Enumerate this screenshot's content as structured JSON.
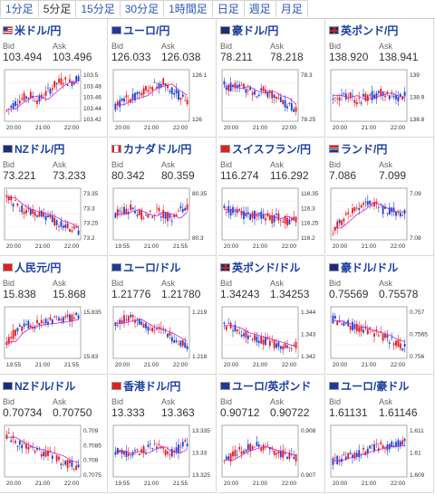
{
  "tabs": [
    {
      "label": "1分足",
      "active": false
    },
    {
      "label": "5分足",
      "active": true
    },
    {
      "label": "15分足",
      "active": false
    },
    {
      "label": "30分足",
      "active": false
    },
    {
      "label": "1時間足",
      "active": false
    },
    {
      "label": "日足",
      "active": false
    },
    {
      "label": "週足",
      "active": false
    },
    {
      "label": "月足",
      "active": false
    }
  ],
  "quote_labels": {
    "bid": "Bid",
    "ask": "Ask"
  },
  "pairs": [
    {
      "name": "米ドル/円",
      "flag": "flag-us-icon",
      "bid": "103.494",
      "ask": "103.496",
      "yticks": [
        "103.5",
        "103.48",
        "103.46",
        "103.44",
        "103.42"
      ],
      "xticks": [
        "20:00",
        "21:00",
        "22:00"
      ],
      "trend": [
        0.2,
        0.35,
        0.45,
        0.5,
        0.4,
        0.55,
        0.7,
        0.8,
        0.75,
        0.85
      ]
    },
    {
      "name": "ユーロ/円",
      "flag": "flag-eu-icon",
      "bid": "126.033",
      "ask": "126.038",
      "yticks": [
        "126.1",
        "126"
      ],
      "xticks": [
        "20:00",
        "21:00",
        "22:00"
      ],
      "trend": [
        0.3,
        0.4,
        0.45,
        0.5,
        0.65,
        0.7,
        0.75,
        0.6,
        0.5,
        0.35
      ]
    },
    {
      "name": "豪ドル/円",
      "flag": "flag-au-icon",
      "bid": "78.211",
      "ask": "78.218",
      "yticks": [
        "78.3",
        "78.25"
      ],
      "xticks": [
        "20:00",
        "21:00",
        "22:00"
      ],
      "trend": [
        0.7,
        0.65,
        0.7,
        0.6,
        0.55,
        0.6,
        0.5,
        0.45,
        0.3,
        0.25
      ]
    },
    {
      "name": "英ポンド/円",
      "flag": "flag-uk-icon",
      "bid": "138.920",
      "ask": "138.941",
      "yticks": [
        "139",
        "138.9",
        "138.8"
      ],
      "xticks": [
        "20:00",
        "21:00",
        "22:00"
      ],
      "trend": [
        0.5,
        0.45,
        0.5,
        0.4,
        0.45,
        0.5,
        0.55,
        0.5,
        0.45,
        0.5
      ]
    },
    {
      "name": "NZドル/円",
      "flag": "flag-nz-icon",
      "bid": "73.221",
      "ask": "73.233",
      "yticks": [
        "73.35",
        "73.3",
        "73.25",
        "73.2"
      ],
      "xticks": [
        "20:00",
        "21:00",
        "22:00"
      ],
      "trend": [
        0.85,
        0.7,
        0.6,
        0.55,
        0.5,
        0.45,
        0.35,
        0.3,
        0.2,
        0.15
      ]
    },
    {
      "name": "カナダドル/円",
      "flag": "flag-ca-icon",
      "bid": "80.342",
      "ask": "80.359",
      "yticks": [
        "80.35",
        "80.3"
      ],
      "xticks": [
        "19:55",
        "21:00",
        "21:55"
      ],
      "trend": [
        0.5,
        0.55,
        0.6,
        0.5,
        0.45,
        0.55,
        0.5,
        0.4,
        0.55,
        0.6
      ]
    },
    {
      "name": "スイスフラン/円",
      "flag": "flag-ch-icon",
      "bid": "116.274",
      "ask": "116.292",
      "yticks": [
        "116.35",
        "116.3",
        "116.25",
        "116.2"
      ],
      "xticks": [
        "20:00",
        "21:00",
        "22:00"
      ],
      "trend": [
        0.6,
        0.55,
        0.5,
        0.45,
        0.5,
        0.45,
        0.4,
        0.45,
        0.35,
        0.4
      ]
    },
    {
      "name": "ランド/円",
      "flag": "flag-za-icon",
      "bid": "7.086",
      "ask": "7.099",
      "yticks": [
        "7.09",
        "7.08"
      ],
      "xticks": [
        "20:00",
        "21:00",
        "22:00"
      ],
      "trend": [
        0.2,
        0.35,
        0.5,
        0.6,
        0.75,
        0.7,
        0.6,
        0.55,
        0.55,
        0.5
      ]
    },
    {
      "name": "人民元/円",
      "flag": "flag-cn-icon",
      "bid": "15.838",
      "ask": "15.868",
      "yticks": [
        "15.835",
        "15.83"
      ],
      "xticks": [
        "19:55",
        "21:00",
        "21:55"
      ],
      "trend": [
        0.3,
        0.5,
        0.6,
        0.65,
        0.68,
        0.7,
        0.72,
        0.75,
        0.78,
        0.8
      ]
    },
    {
      "name": "ユーロ/ドル",
      "flag": "flag-eu-icon",
      "bid": "1.21776",
      "ask": "1.21780",
      "yticks": [
        "1.219",
        "1.218"
      ],
      "xticks": [
        "20:00",
        "21:00",
        "22:00"
      ],
      "trend": [
        0.7,
        0.75,
        0.8,
        0.7,
        0.6,
        0.55,
        0.5,
        0.4,
        0.3,
        0.25
      ]
    },
    {
      "name": "英ポンド/ドル",
      "flag": "flag-uk-icon",
      "bid": "1.34243",
      "ask": "1.34253",
      "yticks": [
        "1.344",
        "1.343",
        "1.342"
      ],
      "xticks": [
        "20:00",
        "21:00",
        "22:00"
      ],
      "trend": [
        0.65,
        0.6,
        0.5,
        0.45,
        0.4,
        0.35,
        0.3,
        0.25,
        0.2,
        0.25
      ]
    },
    {
      "name": "豪ドル/ドル",
      "flag": "flag-au-icon",
      "bid": "0.75569",
      "ask": "0.75578",
      "yticks": [
        "0.757",
        "0.7565",
        "0.756"
      ],
      "xticks": [
        "20:00",
        "21:00",
        "22:00"
      ],
      "trend": [
        0.75,
        0.7,
        0.65,
        0.6,
        0.55,
        0.5,
        0.45,
        0.35,
        0.3,
        0.2
      ]
    },
    {
      "name": "NZドル/ドル",
      "flag": "flag-nz-icon",
      "bid": "0.70734",
      "ask": "0.70750",
      "yticks": [
        "0.709",
        "0.7085",
        "0.708",
        "0.7075"
      ],
      "xticks": [
        "20:00",
        "21:00",
        "22:00"
      ],
      "trend": [
        0.8,
        0.7,
        0.6,
        0.55,
        0.5,
        0.45,
        0.4,
        0.3,
        0.25,
        0.2
      ]
    },
    {
      "name": "香港ドル/円",
      "flag": "flag-hk-icon",
      "bid": "13.333",
      "ask": "13.363",
      "yticks": [
        "13.335",
        "13.33",
        "13.325"
      ],
      "xticks": [
        "19:55",
        "21:00",
        "21:55"
      ],
      "trend": [
        0.5,
        0.45,
        0.5,
        0.45,
        0.55,
        0.6,
        0.5,
        0.45,
        0.55,
        0.65
      ]
    },
    {
      "name": "ユーロ/英ポンド",
      "flag": "flag-eu-icon",
      "bid": "0.90712",
      "ask": "0.90722",
      "yticks": [
        "0.908",
        "0.907"
      ],
      "xticks": [
        "20:00",
        "21:00",
        "22:00"
      ],
      "trend": [
        0.3,
        0.4,
        0.5,
        0.55,
        0.6,
        0.55,
        0.5,
        0.45,
        0.4,
        0.35
      ]
    },
    {
      "name": "ユーロ/豪ドル",
      "flag": "flag-eu-icon",
      "bid": "1.61131",
      "ask": "1.61146",
      "yticks": [
        "1.611",
        "1.61",
        "1.609"
      ],
      "xticks": [
        "20:00",
        "21:00",
        "22:00"
      ],
      "trend": [
        0.3,
        0.35,
        0.4,
        0.45,
        0.5,
        0.55,
        0.6,
        0.6,
        0.62,
        0.65
      ]
    }
  ],
  "colors": {
    "title": "#1a3fa0",
    "up": "#e8141c",
    "down": "#1a3fd0",
    "ma": "#d020d0"
  }
}
